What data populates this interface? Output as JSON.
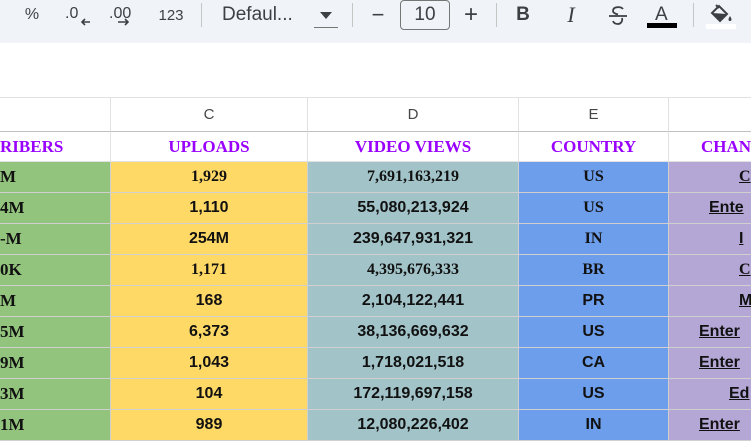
{
  "toolbar": {
    "percent": "%",
    "decrease_decimal": ".0",
    "increase_decimal": ".00",
    "more_formats": "123",
    "font_name": "Defaul...",
    "font_size": "10",
    "minus": "−",
    "plus": "+",
    "bold": "B",
    "italic": "I",
    "strike": "S",
    "text_color": "A",
    "text_color_value": "#000000"
  },
  "columns": [
    "",
    "C",
    "D",
    "E",
    ""
  ],
  "headers": [
    "RIBERS",
    "UPLOADS",
    "VIDEO VIEWS",
    "COUNTRY",
    "CHAN"
  ],
  "rows": [
    {
      "subs": "M",
      "uploads": "1,929",
      "views": "7,691,163,219",
      "country": "US",
      "channel": "C"
    },
    {
      "subs": "4M",
      "uploads": "1,110",
      "views": "55,080,213,924",
      "country": "US",
      "channel": "Ente"
    },
    {
      "subs": "-M",
      "uploads": "254M",
      "views": "239,647,931,321",
      "country": "IN",
      "channel": "I"
    },
    {
      "subs": "0K",
      "uploads": "1,171",
      "views": "4,395,676,333",
      "country": "BR",
      "channel": "C"
    },
    {
      "subs": "M",
      "uploads": "168",
      "views": "2,104,122,441",
      "country": "PR",
      "channel": "M"
    },
    {
      "subs": "5M",
      "uploads": "6,373",
      "views": "38,136,669,632",
      "country": "US",
      "channel": "Enter"
    },
    {
      "subs": "9M",
      "uploads": "1,043",
      "views": "1,718,021,518",
      "country": "CA",
      "channel": "Enter"
    },
    {
      "subs": "3M",
      "uploads": "104",
      "views": "172,119,697,158",
      "country": "US",
      "channel": "Ed"
    },
    {
      "subs": "1M",
      "uploads": "989",
      "views": "12,080,226,402",
      "country": "IN",
      "channel": "Enter"
    }
  ],
  "row_fonts": [
    "serif",
    "sans",
    "sans",
    "serif",
    "sans",
    "sans",
    "sans",
    "sans",
    "sans"
  ],
  "country_fonts": [
    "serif",
    "serif",
    "serif",
    "serif",
    "sans",
    "sans",
    "sans",
    "sans",
    "sans"
  ],
  "colors": {
    "subs_bg": "#93c47d",
    "uploads_bg": "#ffd966",
    "views_bg": "#a2c4c9",
    "country_bg": "#6d9eeb",
    "channel_bg": "#b4a7d6",
    "header_text": "#9900ff"
  }
}
